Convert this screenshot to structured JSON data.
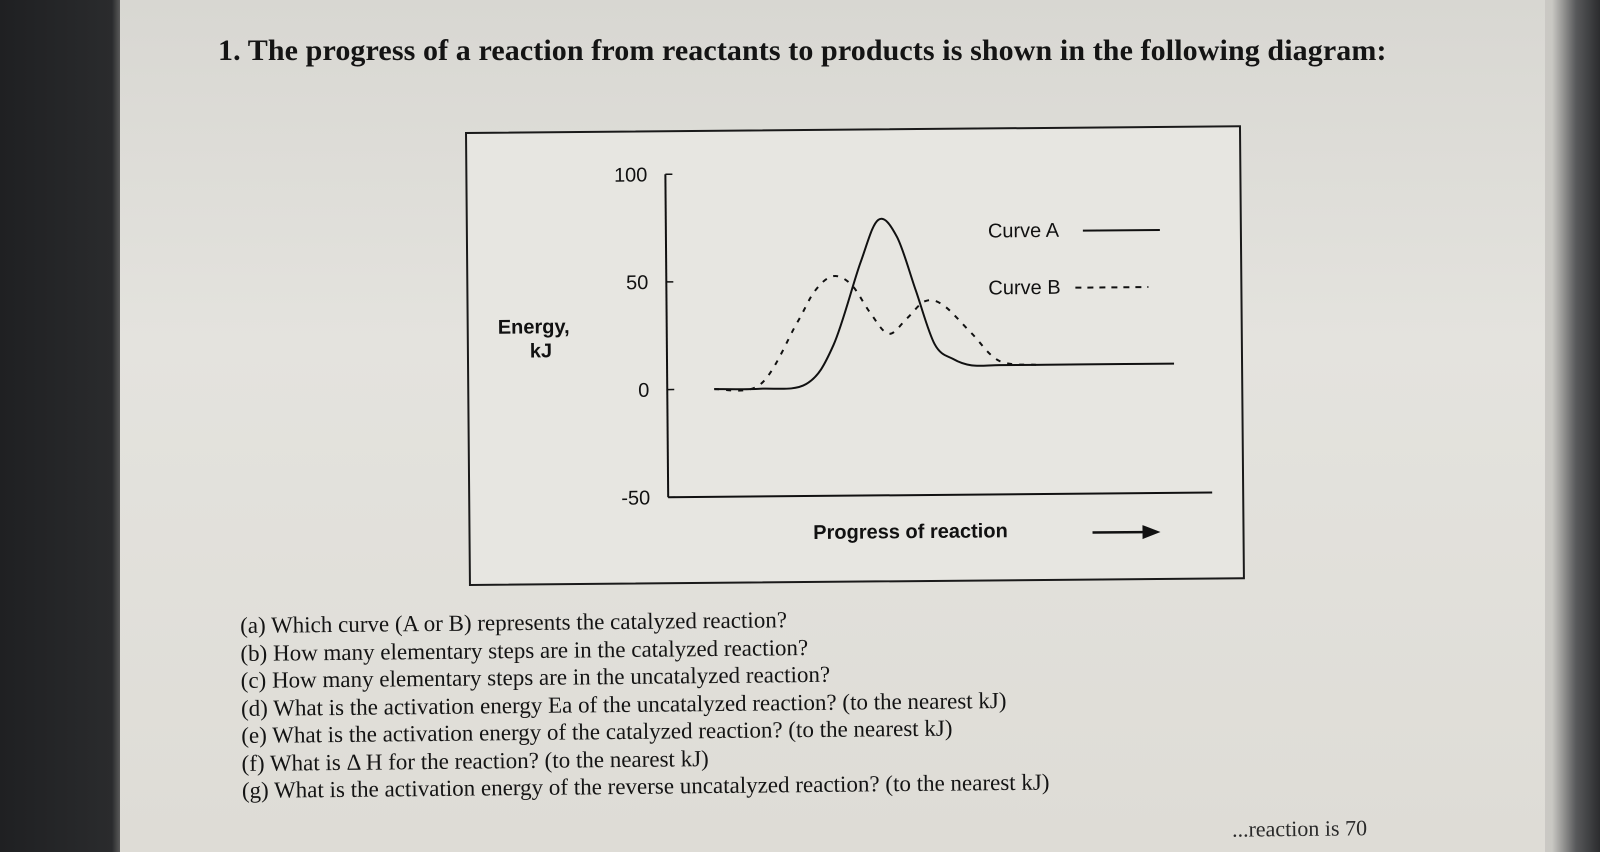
{
  "title": "1. The progress of a reaction from reactants to products is shown in the following diagram:",
  "diagram": {
    "y_axis_label_line1": "Energy,",
    "y_axis_label_line2": "kJ",
    "x_axis_label": "Progress of reaction",
    "y_ticks": [
      "100",
      "50",
      "0",
      "-50"
    ],
    "legend": {
      "curve_a": "Curve A",
      "curve_b": "Curve B"
    }
  },
  "chart_data": {
    "type": "line",
    "title": "",
    "xlabel": "Progress of reaction",
    "ylabel": "Energy, kJ",
    "ylim": [
      -50,
      100
    ],
    "y_ticks": [
      100,
      50,
      0,
      -50
    ],
    "legend_placement": "top-right",
    "series": [
      {
        "name": "Curve A",
        "style": "solid",
        "x": [
          0,
          10,
          20,
          26,
          32,
          36,
          40,
          44,
          48,
          52,
          56,
          62,
          70,
          80,
          100
        ],
        "y": [
          0,
          0,
          2,
          20,
          58,
          78,
          70,
          45,
          20,
          13,
          10,
          10,
          10,
          10,
          10
        ]
      },
      {
        "name": "Curve B",
        "style": "dashed",
        "x": [
          0,
          10,
          18,
          22,
          26,
          30,
          34,
          38,
          42,
          46,
          50,
          56,
          62,
          70
        ],
        "y": [
          0,
          2,
          30,
          45,
          52,
          48,
          35,
          25,
          32,
          40,
          38,
          25,
          12,
          10
        ]
      }
    ]
  },
  "questions": [
    "(a) Which curve (A or B) represents the catalyzed reaction?",
    "(b) How many elementary steps are in the catalyzed reaction?",
    "(c) How many elementary steps are in the uncatalyzed reaction?",
    "(d) What is the activation energy Ea of the uncatalyzed reaction? (to the nearest kJ)",
    "(e) What is the activation energy of the catalyzed reaction? (to the nearest kJ)",
    "(f) What is Δ H for the reaction? (to the nearest kJ)",
    "(g) What is the activation energy of the reverse uncatalyzed reaction? (to the nearest kJ)"
  ],
  "cutoff_bottom_text": "...reaction is 70"
}
